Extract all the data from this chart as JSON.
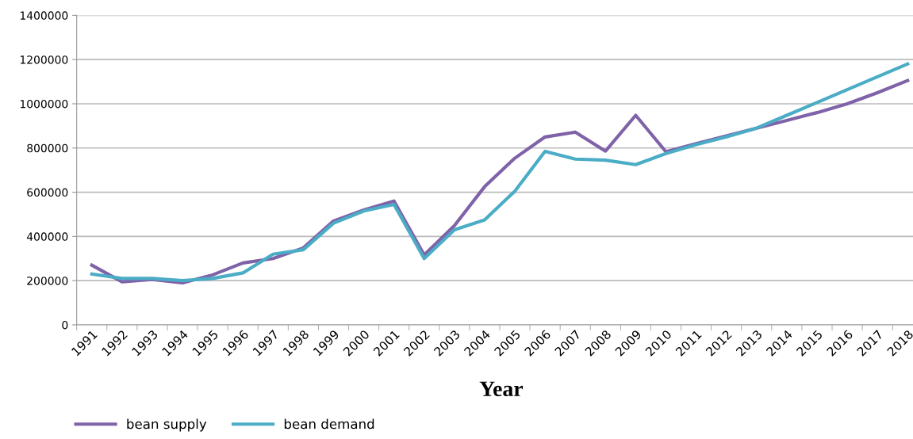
{
  "chart_data": {
    "type": "line",
    "xlabel": "Year",
    "categories": [
      "1991",
      "1992",
      "1993",
      "1994",
      "1995",
      "1996",
      "1997",
      "1998",
      "1999",
      "2000",
      "2001",
      "2002",
      "2003",
      "2004",
      "2005",
      "2006",
      "2007",
      "2008",
      "2009",
      "2010",
      "2011",
      "2012",
      "2013",
      "2014",
      "2015",
      "2016",
      "2017",
      "2018"
    ],
    "series": [
      {
        "name": "bean supply",
        "color": "#7f62a8",
        "values": [
          270000,
          195000,
          205000,
          190000,
          226000,
          280000,
          300000,
          348000,
          470000,
          520000,
          560000,
          316000,
          449000,
          625000,
          754000,
          850000,
          872000,
          786000,
          948000,
          783000,
          820000,
          855000,
          890000,
          925000,
          960000,
          1000000,
          1050000,
          1105000
        ]
      },
      {
        "name": "bean demand",
        "color": "#4bacc6",
        "values": [
          230000,
          210000,
          210000,
          200000,
          210000,
          235000,
          320000,
          340000,
          460000,
          515000,
          545000,
          300000,
          430000,
          475000,
          605000,
          785000,
          750000,
          745000,
          725000,
          775000,
          815000,
          850000,
          890000,
          948000,
          1006000,
          1064000,
          1122000,
          1180000
        ]
      }
    ],
    "ylim": [
      0,
      1400000
    ],
    "yticks": [
      0,
      200000,
      400000,
      600000,
      800000,
      1000000,
      1200000,
      1400000
    ],
    "grid": "y",
    "legend": "bottom left",
    "marker": "none",
    "line_style": "solid"
  }
}
